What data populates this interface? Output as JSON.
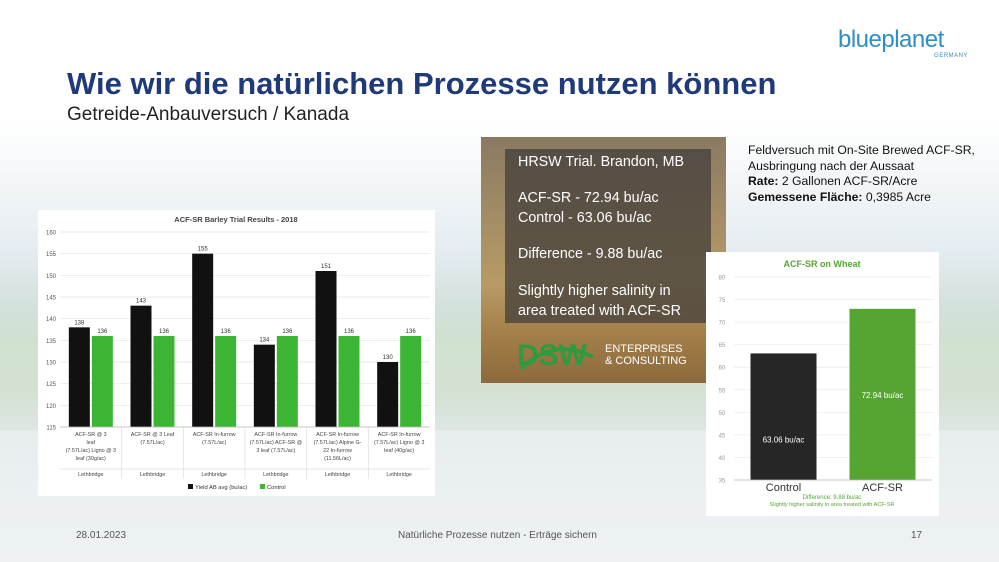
{
  "slide": {
    "title": "Wie wir die natürlichen Prozesse nutzen können",
    "subtitle": "Getreide-Anbauversuch / Kanada",
    "footer_date": "28.01.2023",
    "footer_center": "Natürliche Prozesse nutzen - Erträge sichern",
    "page_number": "17"
  },
  "logo": {
    "text": "blueplanet",
    "sub": "GERMANY",
    "tm": "™",
    "color": "#2e8fc6"
  },
  "note": {
    "line1": "Feldversuch mit On-Site Brewed ACF-SR, Ausbringung nach der Aussaat",
    "rate_label": "Rate:",
    "rate_value": " 2 Gallonen ACF-SR/Acre",
    "area_label": "Gemessene Fläche:",
    "area_value": " 0,3985 Acre"
  },
  "trial_panel": {
    "lines": [
      "HRSW Trial. Brandon, MB",
      "ACF-SR - 72.94 bu/ac",
      "Control - 63.06 bu/ac",
      "Difference - 9.88 bu/ac",
      "Slightly higher salinity in",
      "area treated with ACF-SR"
    ],
    "logo_text": "DSW",
    "logo_sub1": "ENTERPRISES",
    "logo_sub2": "& CONSULTING"
  },
  "chart_data": [
    {
      "type": "bar",
      "title": "ACF-SR Barley Trial Results - 2018",
      "categories": [
        "ACF-SR @ 3 leaf (7.57L/ac) Ligno @ 3 leaf (30g/ac)",
        "ACF-SR @ 3 Leaf (7.57L/ac)",
        "ACF-SR In-furrow (7.57L/ac)",
        "ACF-SR In-furrow (7.57L/ac) ACF-SR @ 3 leaf (7.57L/ac)",
        "ACF-SR In-furrow (7.57L/ac) Alpine G-22 In-furrow (11.56L/ac)",
        "ACF-SR In-furrow (7.57L/ac) Ligno @ 3 leaf (40g/ac)"
      ],
      "category_lines": [
        [
          "ACF-SR @ 3",
          "leaf",
          "(7.57L/ac) Ligno @ 3",
          "leaf (30g/ac)"
        ],
        [
          "ACF-SR @ 3 Leaf",
          "(7.57L/ac)"
        ],
        [
          "ACF-SR In-furrow",
          "(7.57L/ac)"
        ],
        [
          "ACF-SR In-furrow",
          "(7.57L/ac) ACF-SR @",
          "3 leaf (7.57L/ac)"
        ],
        [
          "ACF-SR In-furrow",
          "(7.57L/ac) Alpine G-",
          "22 In-furrow",
          "(11.56L/ac)"
        ],
        [
          "ACF-SR In-furrow",
          "(7.57L/ac) Ligno @ 3",
          "leaf (40g/ac)"
        ]
      ],
      "location": [
        "Lethbridge",
        "Lethbridge",
        "Lethbridge",
        "Lethbridge",
        "Lethbridge",
        "Lethbridge"
      ],
      "series": [
        {
          "name": "Yield AB avg (bu/ac)",
          "values": [
            138,
            143,
            155,
            134,
            151,
            130
          ],
          "color": "#111111"
        },
        {
          "name": "Control",
          "values": [
            136,
            136,
            136,
            136,
            136,
            136
          ],
          "color": "#3cb534"
        }
      ],
      "ylim": [
        115,
        160
      ],
      "yticks": [
        115,
        120,
        125,
        130,
        135,
        140,
        145,
        150,
        155,
        160
      ],
      "legend": "bottom",
      "grid": true
    },
    {
      "type": "bar",
      "title": "ACF-SR on Wheat",
      "categories": [
        "Control",
        "ACF-SR"
      ],
      "values": [
        63.06,
        72.94
      ],
      "data_labels": [
        "63.06 bu/ac",
        "72.94 bu/ac"
      ],
      "colors": [
        "#262626",
        "#56a532"
      ],
      "ylim": [
        35,
        80
      ],
      "yticks": [
        35,
        40,
        45,
        50,
        55,
        60,
        65,
        70,
        75,
        80
      ],
      "annotation1": "Difference: 9.88 bu/ac",
      "annotation2": "Slightly higher salinity in area treated with ACF-SR",
      "title_color": "#56a532",
      "grid": true
    }
  ]
}
